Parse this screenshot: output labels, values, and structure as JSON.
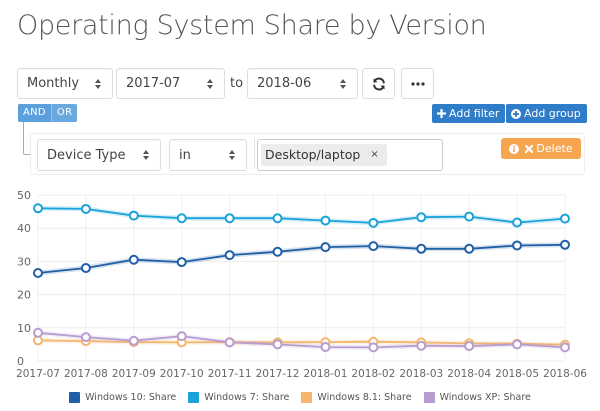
{
  "page": {
    "title": "Operating System Share by Version"
  },
  "controls": {
    "interval": {
      "value": "Monthly"
    },
    "start": {
      "value": "2017-07"
    },
    "to_label": "to",
    "end": {
      "value": "2018-06"
    },
    "refresh_icon": "refresh-icon",
    "more_icon": "ellipsis-icon"
  },
  "query_builder": {
    "conditions": [
      {
        "label": "AND",
        "active": true
      },
      {
        "label": "OR",
        "active": false
      }
    ],
    "add_filter_label": "Add filter",
    "add_group_label": "Add group",
    "rule": {
      "field": "Device Type",
      "operator": "in",
      "values": [
        {
          "label": "Desktop/laptop",
          "remove": "×"
        }
      ],
      "delete_label": "Delete"
    }
  },
  "colors": {
    "windows10": "#1f5fa6",
    "windows7": "#1aa3d9",
    "windows81": "#f5b56b",
    "windowsxp": "#b79ccf",
    "primary_button": "#2f7cc8",
    "warning_button": "#f6a650",
    "andor": "#5b9fdd"
  },
  "chart_data": {
    "type": "line",
    "title": "Operating System Share by Version",
    "xlabel": "",
    "ylabel": "",
    "ylim": [
      0,
      50
    ],
    "yticks": [
      0,
      10,
      20,
      30,
      40,
      50
    ],
    "grid": true,
    "legend_position": "bottom",
    "categories": [
      "2017-07",
      "2017-08",
      "2017-09",
      "2017-10",
      "2017-11",
      "2017-12",
      "2018-01",
      "2018-02",
      "2018-03",
      "2018-04",
      "2018-05",
      "2018-06"
    ],
    "series": [
      {
        "name": "Windows 10: Share",
        "color": "#1f5fa6",
        "values": [
          26.5,
          28.0,
          30.5,
          29.8,
          31.9,
          32.9,
          34.3,
          34.6,
          33.8,
          33.8,
          34.8,
          35.0
        ]
      },
      {
        "name": "Windows 7: Share",
        "color": "#1aa3d9",
        "values": [
          46.0,
          45.8,
          43.8,
          43.0,
          43.0,
          43.0,
          42.3,
          41.6,
          43.3,
          43.5,
          41.7,
          42.9
        ]
      },
      {
        "name": "Windows 8.1: Share",
        "color": "#f5b56b",
        "values": [
          6.2,
          6.0,
          5.7,
          5.6,
          5.7,
          5.6,
          5.7,
          5.8,
          5.6,
          5.3,
          5.2,
          4.9
        ]
      },
      {
        "name": "Windows XP: Share",
        "color": "#b79ccf",
        "values": [
          8.5,
          7.2,
          6.1,
          7.5,
          5.6,
          5.0,
          4.2,
          4.1,
          4.6,
          4.5,
          5.0,
          4.1
        ]
      }
    ]
  }
}
